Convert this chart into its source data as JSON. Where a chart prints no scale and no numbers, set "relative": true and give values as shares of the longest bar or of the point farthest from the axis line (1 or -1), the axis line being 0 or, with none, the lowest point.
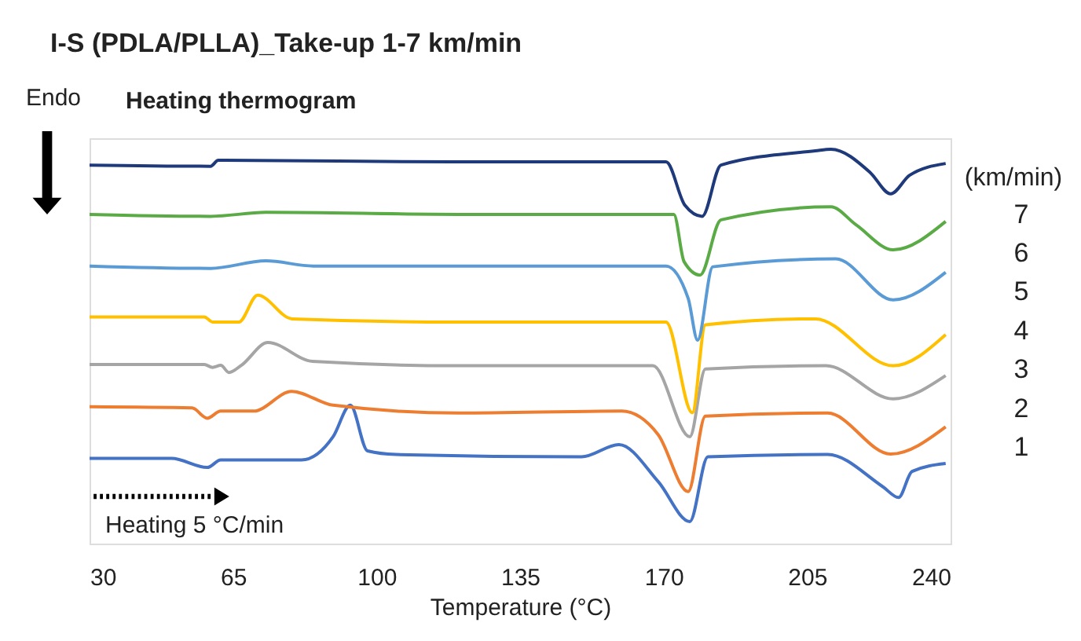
{
  "chart_data": {
    "type": "line",
    "title": "I-S (PDLA/PLLA)_Take-up 1-7 km/min",
    "subtitle": "Heating thermogram",
    "xlabel": "Temperature (°C)",
    "legend_title": "(km/min)",
    "legend": "right",
    "relative": true,
    "grid": false,
    "tick_labels": "x",
    "line_style": "solid",
    "xlim": [
      30,
      240
    ],
    "xticks": [
      30,
      65,
      100,
      135,
      170,
      205,
      240
    ],
    "annotations": [
      "Endo",
      "Heating 5 °C/min"
    ],
    "series": [
      {
        "name": "1",
        "color": "#4472c4",
        "x": [
          30,
          50,
          58.7,
          62,
          81.7,
          89.4,
          93.6,
          97.8,
          104.7,
          150,
          159.1,
          168.7,
          176.4,
          180.8,
          210,
          223.5,
          227.3,
          230.6,
          238.8
        ],
        "values": [
          0.216,
          0.216,
          0.193,
          0.212,
          0.212,
          0.271,
          0.351,
          0.235,
          0.226,
          0.22,
          0.251,
          0.157,
          0.056,
          0.22,
          0.226,
          0.144,
          0.117,
          0.183,
          0.203
        ]
      },
      {
        "name": "2",
        "color": "#ed7d31",
        "x": [
          30,
          55,
          58.7,
          62,
          70,
          79.3,
          89.4,
          120,
          159.8,
          168.7,
          176,
          180.2,
          210,
          225.4,
          238.8
        ],
        "values": [
          0.347,
          0.344,
          0.318,
          0.336,
          0.336,
          0.386,
          0.351,
          0.331,
          0.336,
          0.276,
          0.132,
          0.323,
          0.331,
          0.227,
          0.296
        ]
      },
      {
        "name": "3",
        "color": "#a5a5a5",
        "x": [
          30,
          58,
          60,
          62,
          64,
          67,
          73.5,
          84.4,
          120,
          167.4,
          176.4,
          180.2,
          209.6,
          226,
          238.8
        ],
        "values": [
          0.454,
          0.454,
          0.447,
          0.452,
          0.434,
          0.452,
          0.51,
          0.462,
          0.451,
          0.451,
          0.271,
          0.443,
          0.451,
          0.367,
          0.426
        ]
      },
      {
        "name": "4",
        "color": "#ffc000",
        "x": [
          30,
          58,
          60,
          66.4,
          71,
          79.4,
          120,
          170.6,
          177,
          180.2,
          207,
          226,
          238.8
        ],
        "values": [
          0.575,
          0.575,
          0.562,
          0.562,
          0.63,
          0.57,
          0.562,
          0.562,
          0.332,
          0.555,
          0.57,
          0.451,
          0.53
        ]
      },
      {
        "name": "5",
        "color": "#5b9bd5",
        "x": [
          30,
          59.5,
          73,
          84.6,
          120,
          170.6,
          176,
          178.3,
          182,
          212,
          226,
          238.8
        ],
        "values": [
          0.704,
          0.698,
          0.717,
          0.704,
          0.704,
          0.704,
          0.622,
          0.516,
          0.702,
          0.722,
          0.618,
          0.688
        ]
      },
      {
        "name": "6",
        "color": "#5aab46",
        "x": [
          30,
          59.5,
          73,
          120,
          172.5,
          175,
          178.9,
          184,
          210.8,
          217,
          226,
          238.8
        ],
        "values": [
          0.835,
          0.83,
          0.84,
          0.835,
          0.835,
          0.715,
          0.681,
          0.821,
          0.854,
          0.808,
          0.745,
          0.817
        ]
      },
      {
        "name": "7",
        "color": "#1f3a7a",
        "x": [
          30,
          59.5,
          61.4,
          120,
          170.6,
          175.2,
          179.4,
          184,
          207,
          210.8,
          220.4,
          225.4,
          230,
          238.8
        ],
        "values": [
          0.96,
          0.957,
          0.972,
          0.968,
          0.968,
          0.858,
          0.83,
          0.96,
          0.996,
          1.0,
          0.941,
          0.887,
          0.934,
          0.964
        ]
      }
    ]
  }
}
